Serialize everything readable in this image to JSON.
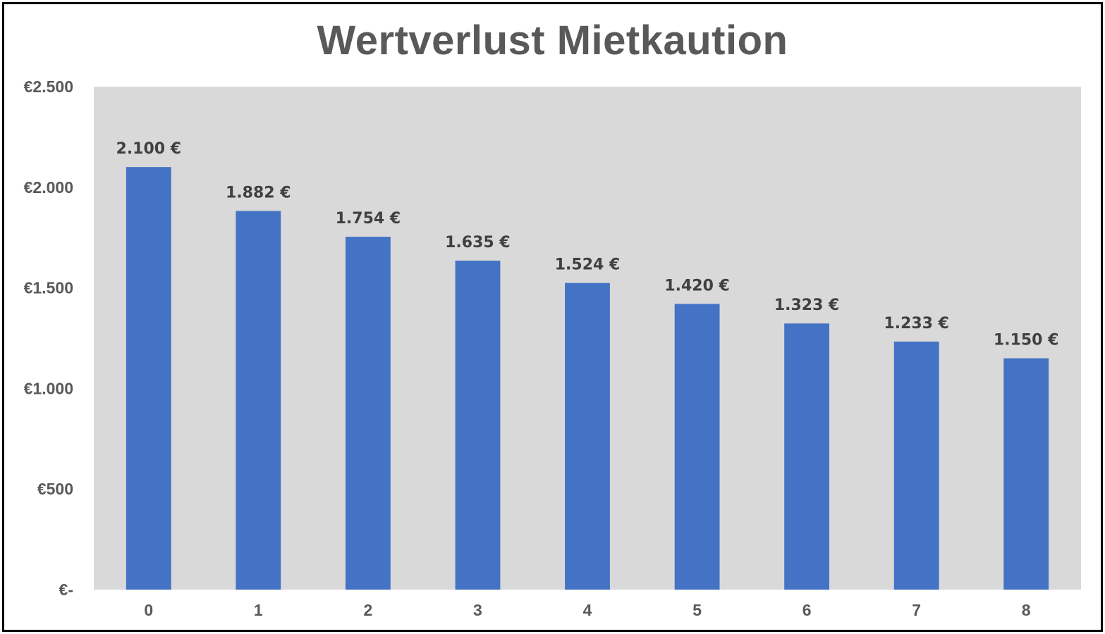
{
  "chart_data": {
    "type": "bar",
    "title": "Wertverlust Mietkaution",
    "categories": [
      "0",
      "1",
      "2",
      "3",
      "4",
      "5",
      "6",
      "7",
      "8"
    ],
    "values": [
      2100,
      1882,
      1754,
      1635,
      1524,
      1420,
      1323,
      1233,
      1150
    ],
    "data_labels": [
      "2.100 €",
      "1.882 €",
      "1.754 €",
      "1.635 €",
      "1.524 €",
      "1.420 €",
      "1.323 €",
      "1.233 €",
      "1.150 €"
    ],
    "y_ticks": [
      0,
      500,
      1000,
      1500,
      2000,
      2500
    ],
    "y_tick_labels": [
      "€-",
      "€500",
      "€1.000",
      "€1.500",
      "€2.000",
      "€2.500"
    ],
    "ylim": [
      0,
      2500
    ],
    "xlabel": "",
    "ylabel": "",
    "grid": false,
    "legend": "none",
    "colors": {
      "bar": "#4472C4",
      "plot_background": "#D9D9D9",
      "title": "#595959",
      "tick_text": "#595959",
      "data_label_text": "#404040",
      "frame": "#000000"
    }
  }
}
